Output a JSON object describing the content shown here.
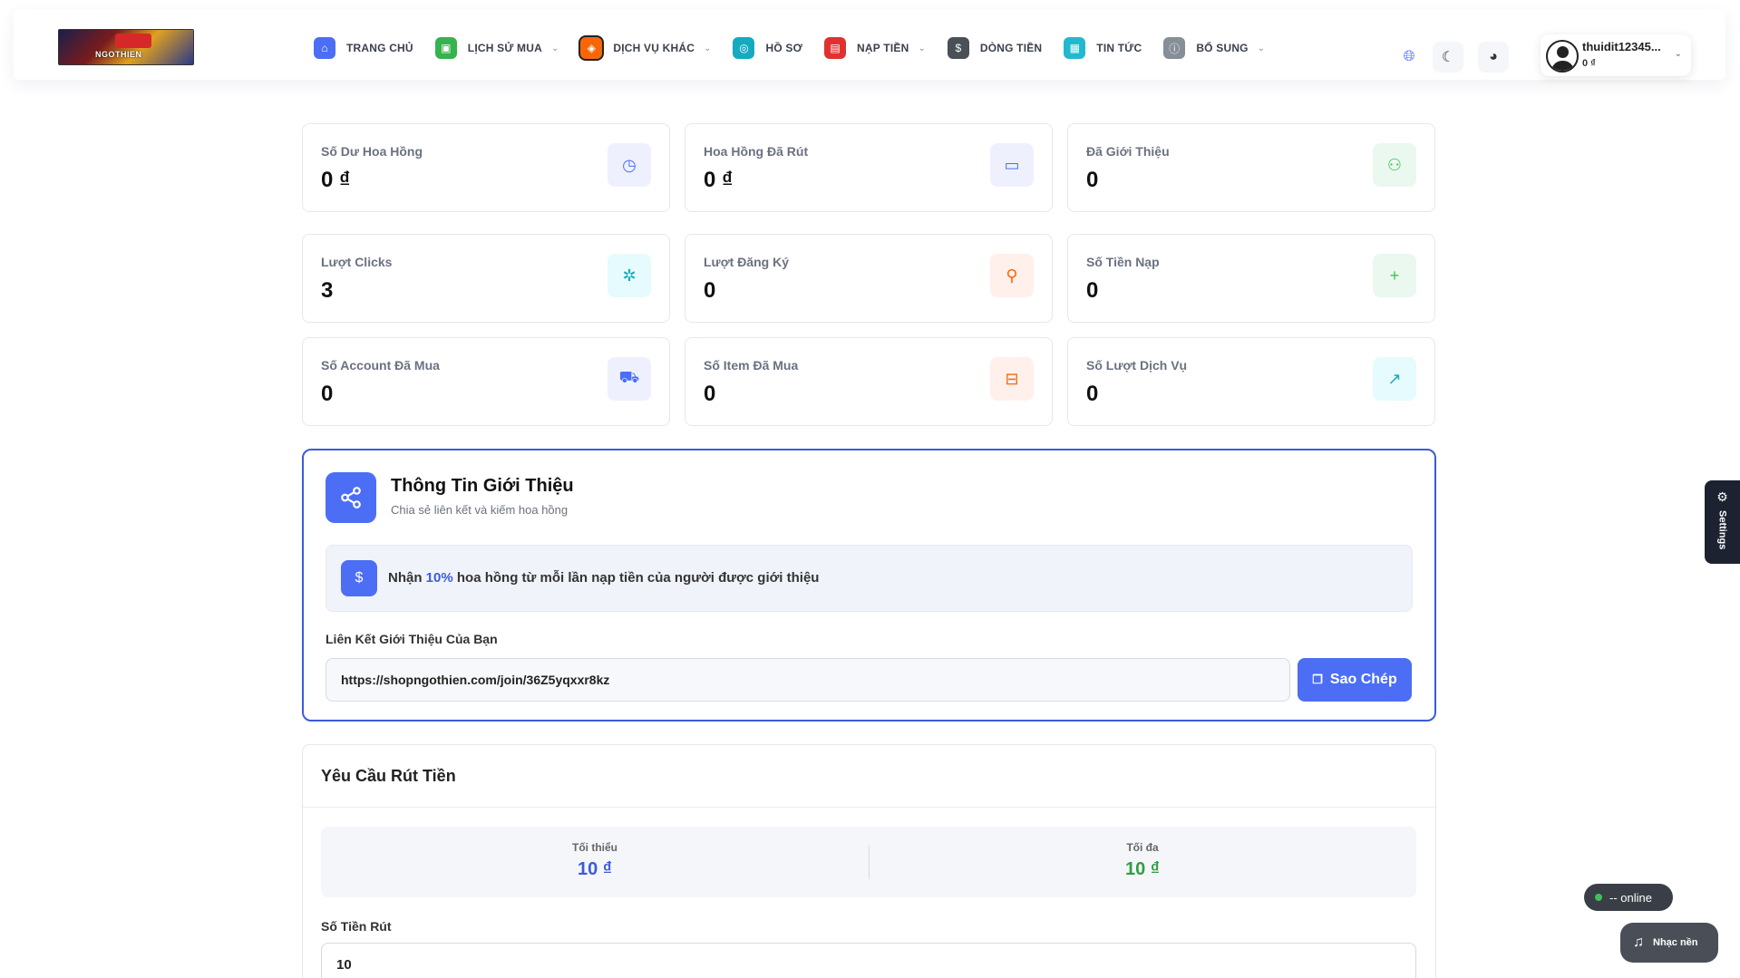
{
  "header": {
    "logo_text": "NGOTHIEN",
    "nav": [
      {
        "label": "TRANG CHỦ",
        "icon": "home-icon",
        "color": "#4c6ef5",
        "glyph": "⌂",
        "caret": false
      },
      {
        "label": "LỊCH SỬ MUA",
        "icon": "gamepad-icon",
        "color": "#37b24d",
        "glyph": "▣",
        "caret": true
      },
      {
        "label": "DỊCH VỤ KHÁC",
        "icon": "layers-icon",
        "color": "#f76707",
        "glyph": "◈",
        "caret": true
      },
      {
        "label": "HỒ SƠ",
        "icon": "user-circle-icon",
        "color": "#15aabf",
        "glyph": "◎",
        "caret": false
      },
      {
        "label": "NẠP TIỀN",
        "icon": "wallet-icon",
        "color": "#e03131",
        "glyph": "▤",
        "caret": true
      },
      {
        "label": "DÒNG TIỀN",
        "icon": "dollar-icon",
        "color": "#495057",
        "glyph": "$",
        "caret": false
      },
      {
        "label": "TIN TỨC",
        "icon": "news-icon",
        "color": "#22b8cf",
        "glyph": "▦",
        "caret": false
      },
      {
        "label": "BỔ SUNG",
        "icon": "info-icon",
        "color": "#868e96",
        "glyph": "ⓘ",
        "caret": true
      }
    ],
    "language_icon": "globe-icon",
    "theme_icon": "moon-icon",
    "palette_icon": "palette-icon",
    "user": {
      "name": "thuidit12345...",
      "balance": "0 ₫"
    }
  },
  "stats": [
    {
      "label": "Số Dư Hoa Hồng",
      "value": "0 ₫",
      "icon": "clock-icon",
      "glyph": "◷",
      "bg": "#eef1fd",
      "fg": "#4c6ef5"
    },
    {
      "label": "Hoa Hồng Đã Rút",
      "value": "0 ₫",
      "icon": "card-icon",
      "glyph": "▭",
      "bg": "#eef1fd",
      "fg": "#4c6ef5"
    },
    {
      "label": "Đã Giới Thiệu",
      "value": "0",
      "icon": "users-icon",
      "glyph": "⚇",
      "bg": "#eaf8ef",
      "fg": "#40c057"
    },
    {
      "label": "Lượt Clicks",
      "value": "3",
      "icon": "pointer-icon",
      "glyph": "✲",
      "bg": "#e6fbfd",
      "fg": "#15aabf"
    },
    {
      "label": "Lượt Đăng Ký",
      "value": "0",
      "icon": "user-plus-icon",
      "glyph": "⚲",
      "bg": "#fff0eb",
      "fg": "#f76707"
    },
    {
      "label": "Số Tiền Nạp",
      "value": "0",
      "icon": "plus-icon",
      "glyph": "+",
      "bg": "#eaf8ef",
      "fg": "#40c057"
    },
    {
      "label": "Số Account Đã Mua",
      "value": "0",
      "icon": "cart-icon",
      "glyph": "⛟",
      "bg": "#eef1fd",
      "fg": "#4c6ef5"
    },
    {
      "label": "Số Item Đã Mua",
      "value": "0",
      "icon": "archive-icon",
      "glyph": "⊟",
      "bg": "#fff0eb",
      "fg": "#f76707"
    },
    {
      "label": "Số Lượt Dịch Vụ",
      "value": "0",
      "icon": "trending-up-icon",
      "glyph": "↗",
      "bg": "#e6fbfd",
      "fg": "#15aabf"
    }
  ],
  "referral": {
    "title": "Thông Tin Giới Thiệu",
    "subtitle": "Chia sẻ liên kết và kiếm hoa hồng",
    "note_prefix": "Nhận",
    "note_percent": "10%",
    "note_suffix": "hoa hồng từ mỗi lần nạp tiền của người được giới thiệu",
    "link_label": "Liên Kết Giới Thiệu Của Bạn",
    "link_value": "https://shopngothien.com/join/36Z5yqxxr8kz",
    "copy_label": "Sao Chép"
  },
  "withdraw": {
    "title": "Yêu Cầu Rút Tiền",
    "min_label": "Tối thiểu",
    "min_value": "10 ₫",
    "max_label": "Tối đa",
    "max_value": "10 ₫",
    "min_color": "#3b5bdb",
    "max_color": "#2f9e44",
    "amount_label": "Số Tiền Rút",
    "amount_value": "10"
  },
  "floating": {
    "settings_label": "Settings",
    "online_text": "-- online",
    "music_label": "Nhạc nền"
  }
}
